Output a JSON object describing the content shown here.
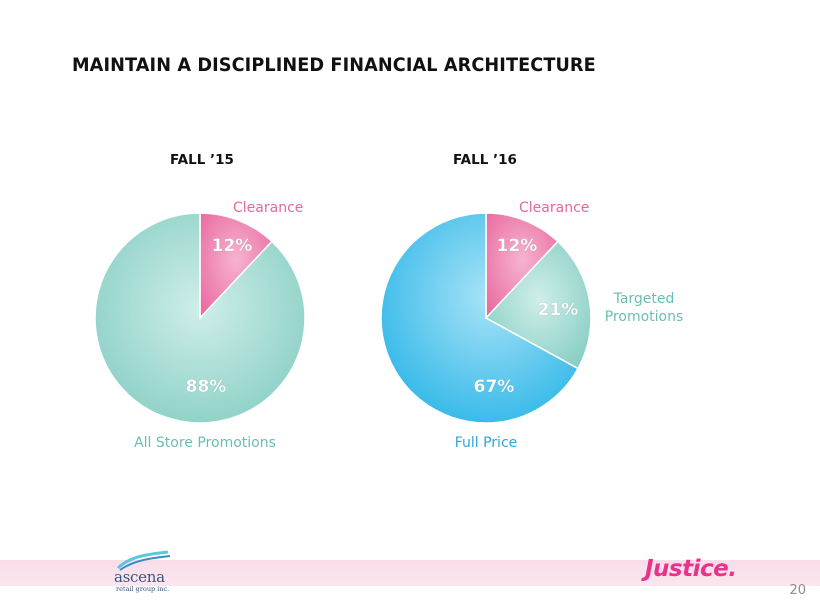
{
  "title": "MAINTAIN A DISCIPLINED FINANCIAL ARCHITECTURE",
  "chart_data": [
    {
      "type": "pie",
      "title": "FALL ’15",
      "slices": [
        {
          "label": "Clearance",
          "value": 12,
          "value_label": "12%",
          "color": "#f07fae",
          "label_color": "#e8679d"
        },
        {
          "label": "All Store Promotions",
          "value": 88,
          "value_label": "88%",
          "color": "#8fd3c9",
          "label_color": "#6bbdb3"
        }
      ]
    },
    {
      "type": "pie",
      "title": "FALL ’16",
      "slices": [
        {
          "label": "Clearance",
          "value": 12,
          "value_label": "12%",
          "color": "#f07fae",
          "label_color": "#e8679d"
        },
        {
          "label": "Targeted\nPromotions",
          "value": 21,
          "value_label": "21%",
          "color": "#8fd3c9",
          "label_color": "#6bbdb3"
        },
        {
          "label": "Full Price",
          "value": 67,
          "value_label": "67%",
          "color": "#37bde8",
          "label_color": "#2fa5d6"
        }
      ]
    }
  ],
  "footer": {
    "ascena_logo_text": "ascena",
    "ascena_logo_subtext": "retail group inc.",
    "justice_logo_text": "Justice.",
    "page_number": "20"
  }
}
